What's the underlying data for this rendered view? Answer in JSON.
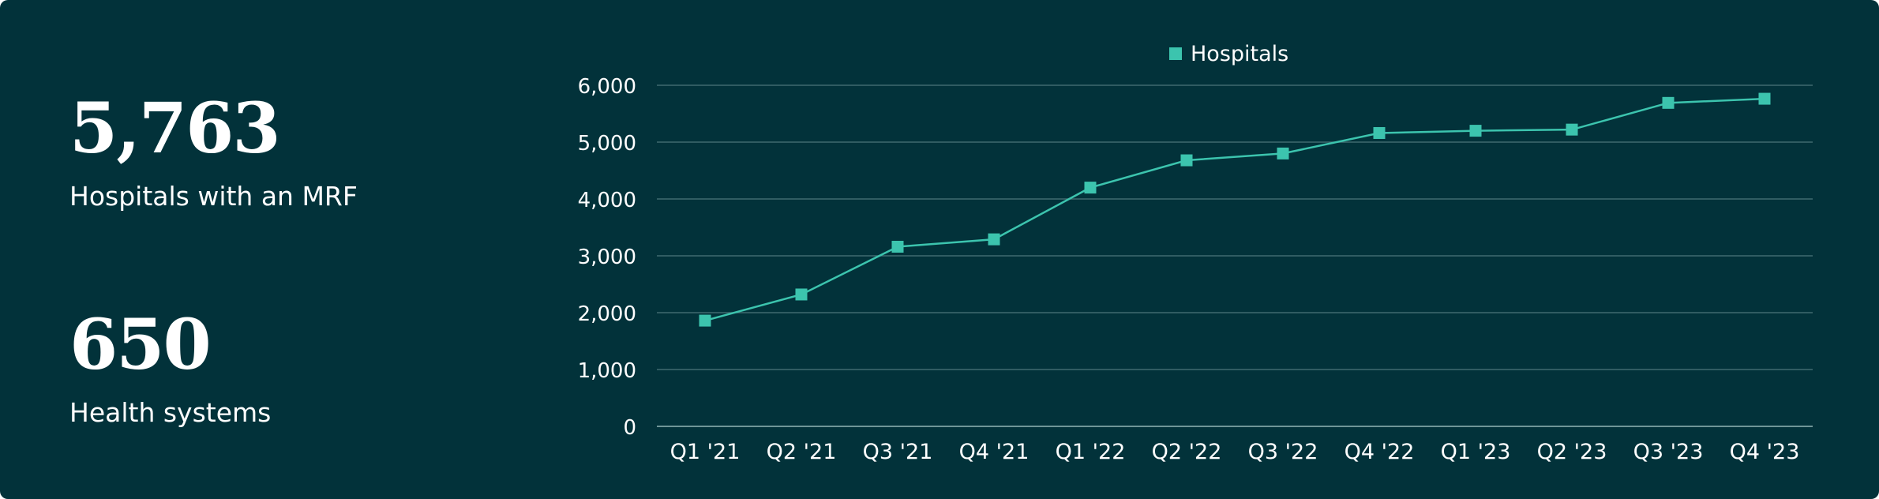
{
  "stats": [
    {
      "value": "5,763",
      "label": "Hospitals with an MRF"
    },
    {
      "value": "650",
      "label": "Health systems"
    }
  ],
  "colors": {
    "background": "#02323a",
    "series": "#3cc4ae",
    "grid": "#3f6b6f",
    "text": "#ffffff"
  },
  "chart_data": {
    "type": "line",
    "categories": [
      "Q1 '21",
      "Q2 '21",
      "Q3 '21",
      "Q4 '21",
      "Q1 '22",
      "Q2 '22",
      "Q3 '22",
      "Q4 '22",
      "Q1 '23",
      "Q2 '23",
      "Q3 '23",
      "Q4 '23"
    ],
    "series": [
      {
        "name": "Hospitals",
        "marker": "square",
        "values": [
          1860,
          2320,
          3160,
          3290,
          4200,
          4680,
          4800,
          5160,
          5200,
          5220,
          5690,
          5763
        ]
      }
    ],
    "yticks": [
      "0",
      "1,000",
      "2,000",
      "3,000",
      "4,000",
      "5,000",
      "6,000"
    ],
    "ylim": [
      0,
      6000
    ],
    "grid": true,
    "legend": "top-center",
    "title": "",
    "xlabel": "",
    "ylabel": ""
  }
}
